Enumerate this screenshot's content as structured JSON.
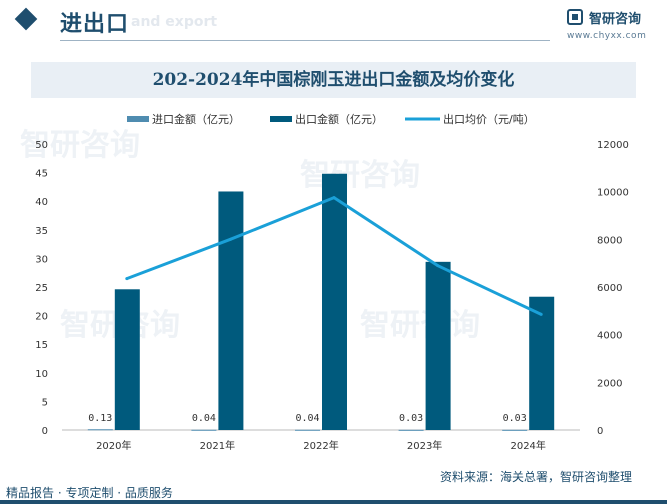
{
  "header": {
    "title": "进出口",
    "ghost_text": "and export",
    "logo_name": "智研咨询",
    "logo_url": "www.chyxx.com"
  },
  "watermark": "智研咨询",
  "footer": {
    "left": "精品报告 · 专项定制 · 品质服务",
    "source": "资料来源：海关总署，智研咨询整理"
  },
  "colors": {
    "import_bar": "#4f8cb0",
    "export_bar": "#005a7d",
    "price_line": "#1aa0d8",
    "brand": "#1f4e6e"
  },
  "chart_data": {
    "type": "bar",
    "title": "202-2024年中国棕刚玉进出口金额及均价变化",
    "categories": [
      "2020年",
      "2021年",
      "2022年",
      "2023年",
      "2024年"
    ],
    "series": [
      {
        "name": "进口金额（亿元）",
        "type": "bar",
        "axis": "left",
        "values": [
          0.13,
          0.04,
          0.04,
          0.03,
          0.03
        ],
        "labels": [
          "0.13",
          "0.04",
          "0.04",
          "0.03",
          "0.03"
        ]
      },
      {
        "name": "出口金额（亿元）",
        "type": "bar",
        "axis": "left",
        "values": [
          24.6,
          41.7,
          44.8,
          29.4,
          23.3
        ]
      },
      {
        "name": "出口均价（元/吨）",
        "type": "line",
        "axis": "right",
        "values": [
          6350,
          8000,
          9750,
          6900,
          4850
        ]
      }
    ],
    "y_left": {
      "ylim": [
        0,
        50
      ],
      "ticks": [
        0,
        5,
        10,
        15,
        20,
        25,
        30,
        35,
        40,
        45,
        50
      ]
    },
    "y_right": {
      "ylim": [
        0,
        12000
      ],
      "ticks": [
        0,
        2000,
        4000,
        6000,
        8000,
        10000,
        12000
      ]
    },
    "legend_position": "top",
    "grid": false
  }
}
